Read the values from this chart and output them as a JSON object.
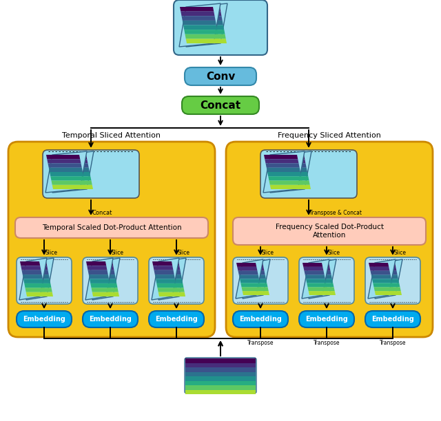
{
  "bg_color": "#ffffff",
  "yellow_color": "#F5C518",
  "light_blue_color": "#B8E0F0",
  "embedding_color": "#00AAEE",
  "embedding_edge": "#0066AA",
  "concat_color": "#66CC44",
  "concat_edge": "#338822",
  "conv_color": "#66BBDD",
  "conv_edge": "#3388AA",
  "attention_color": "#FFCCBB",
  "attention_edge": "#CC8866",
  "spec_bg": "#99DDEE",
  "spec_edge": "#336688",
  "yellow_edge": "#CC8800",
  "temporal_label": "Temporal Sliced Attention",
  "frequency_label": "Frequency Sliced Attention",
  "concat_label": "Concat",
  "conv_label": "Conv",
  "temporal_attn_label": "Temporal Scaled Dot-Product Attention",
  "freq_attn_label": "Frequency Scaled Dot-Product\nAttention",
  "embedding_label": "Embedding",
  "transpose_label": "Transpose",
  "transpose_concat_label": "Transpose & Concat",
  "concat_small_label": "Concat",
  "slice_label": "Slice",
  "spec_colors": [
    "#440154",
    "#472D7B",
    "#3B528B",
    "#2C728E",
    "#21908D",
    "#27AD81",
    "#5DC863",
    "#AADC32"
  ],
  "figw": 6.4,
  "figh": 6.12
}
